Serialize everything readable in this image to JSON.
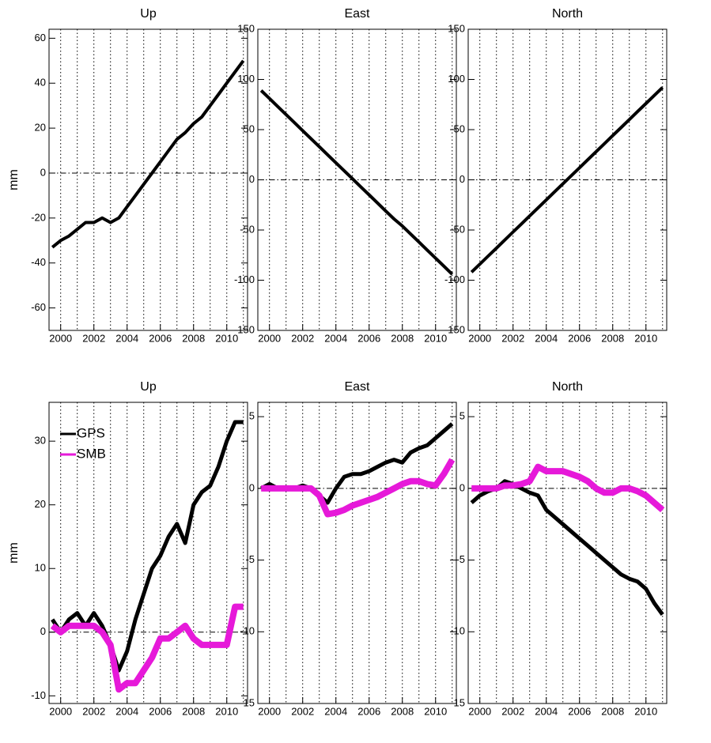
{
  "chart_data": [
    {
      "type": "line",
      "title": "Up",
      "ylabel": "mm",
      "x": [
        1999.5,
        2000,
        2000.5,
        2001,
        2001.5,
        2002,
        2002.5,
        2003,
        2003.5,
        2004,
        2004.5,
        2005,
        2005.5,
        2006,
        2006.5,
        2007,
        2007.5,
        2008,
        2008.5,
        2009,
        2009.5,
        2010,
        2010.5,
        2011
      ],
      "values": [
        -33,
        -30,
        -28,
        -25,
        -22,
        -22,
        -20,
        -22,
        -20,
        -15,
        -10,
        -5,
        0,
        5,
        10,
        15,
        18,
        22,
        25,
        30,
        35,
        40,
        45,
        50
      ],
      "color": "#000000",
      "xlim": [
        1999.3,
        2011.25
      ],
      "xticks": [
        2000,
        2002,
        2004,
        2006,
        2008,
        2010
      ],
      "xgrid": [
        2000,
        2001,
        2002,
        2003,
        2004,
        2005,
        2006,
        2007,
        2008,
        2009,
        2010,
        2011
      ],
      "ylim": [
        -70,
        64
      ],
      "yticks": [
        -60,
        -40,
        -20,
        0,
        20,
        40,
        60
      ],
      "reference_line": 0
    },
    {
      "type": "line",
      "title": "East",
      "x": [
        1999.5,
        2000,
        2000.5,
        2001,
        2001.5,
        2002,
        2002.5,
        2003,
        2003.5,
        2004,
        2004.5,
        2005,
        2005.5,
        2006,
        2006.5,
        2007,
        2007.5,
        2008,
        2008.5,
        2009,
        2009.5,
        2010,
        2010.5,
        2011
      ],
      "values": [
        89,
        81,
        73,
        65,
        57,
        49,
        41,
        33,
        25,
        17,
        9,
        1,
        -7,
        -15,
        -23,
        -31,
        -39,
        -46,
        -54,
        -62,
        -70,
        -78,
        -86,
        -94
      ],
      "color": "#000000",
      "xlim": [
        1999.3,
        2011.25
      ],
      "xticks": [
        2000,
        2002,
        2004,
        2006,
        2008,
        2010
      ],
      "xgrid": [
        2000,
        2001,
        2002,
        2003,
        2004,
        2005,
        2006,
        2007,
        2008,
        2009,
        2010,
        2011
      ],
      "ylim": [
        -150,
        150
      ],
      "yticks": [
        -150,
        -100,
        -50,
        0,
        50,
        100,
        150
      ],
      "reference_line": 0
    },
    {
      "type": "line",
      "title": "North",
      "x": [
        1999.5,
        2000,
        2000.5,
        2001,
        2001.5,
        2002,
        2002.5,
        2003,
        2003.5,
        2004,
        2004.5,
        2005,
        2005.5,
        2006,
        2006.5,
        2007,
        2007.5,
        2008,
        2008.5,
        2009,
        2009.5,
        2010,
        2010.5,
        2011
      ],
      "values": [
        -92,
        -84,
        -76,
        -68,
        -60,
        -52,
        -44,
        -36,
        -28,
        -20,
        -12,
        -4,
        4,
        12,
        20,
        28,
        36,
        44,
        52,
        60,
        68,
        76,
        84,
        92
      ],
      "color": "#000000",
      "xlim": [
        1999.3,
        2011.25
      ],
      "xticks": [
        2000,
        2002,
        2004,
        2006,
        2008,
        2010
      ],
      "xgrid": [
        2000,
        2001,
        2002,
        2003,
        2004,
        2005,
        2006,
        2007,
        2008,
        2009,
        2010,
        2011
      ],
      "ylim": [
        -150,
        150
      ],
      "yticks": [
        -150,
        -100,
        -50,
        0,
        50,
        100,
        150
      ],
      "reference_line": 0
    },
    {
      "type": "line",
      "title": "Up",
      "ylabel": "mm",
      "legend": "upper left",
      "x": [
        1999.5,
        2000,
        2000.5,
        2001,
        2001.5,
        2002,
        2002.5,
        2003,
        2003.5,
        2004,
        2004.5,
        2005,
        2005.5,
        2006,
        2006.5,
        2007,
        2007.5,
        2008,
        2008.5,
        2009,
        2009.5,
        2010,
        2010.5,
        2011
      ],
      "series": [
        {
          "name": "GPS",
          "color": "#000000",
          "values": [
            2,
            0,
            2,
            3,
            1,
            3,
            1,
            -2,
            -6,
            -3,
            2,
            6,
            10,
            12,
            15,
            17,
            14,
            20,
            22,
            23,
            26,
            30,
            33,
            33
          ]
        },
        {
          "name": "SMB",
          "color": "#e619d9",
          "values": [
            1,
            0,
            1,
            1,
            1,
            1,
            0,
            -2,
            -9,
            -8,
            -8,
            -6,
            -4,
            -1,
            -1,
            0,
            1,
            -1,
            -2,
            -2,
            -2,
            -2,
            4,
            4
          ]
        }
      ],
      "xlim": [
        1999.3,
        2011.25
      ],
      "xticks": [
        2000,
        2002,
        2004,
        2006,
        2008,
        2010
      ],
      "xgrid": [
        2000,
        2001,
        2002,
        2003,
        2004,
        2005,
        2006,
        2007,
        2008,
        2009,
        2010,
        2011
      ],
      "ylim": [
        -11.2,
        36.1
      ],
      "yticks": [
        -10,
        0,
        10,
        20,
        30
      ],
      "reference_line": 0
    },
    {
      "type": "line",
      "title": "East",
      "x": [
        1999.5,
        2000,
        2000.5,
        2001,
        2001.5,
        2002,
        2002.5,
        2003,
        2003.5,
        2004,
        2004.5,
        2005,
        2005.5,
        2006,
        2006.5,
        2007,
        2007.5,
        2008,
        2008.5,
        2009,
        2009.5,
        2010,
        2010.5,
        2011
      ],
      "series": [
        {
          "name": "GPS",
          "color": "#000000",
          "values": [
            0,
            0.3,
            0,
            0,
            0,
            0.2,
            0,
            -0.5,
            -1,
            0,
            0.8,
            1,
            1,
            1.2,
            1.5,
            1.8,
            2,
            1.8,
            2.5,
            2.8,
            3,
            3.5,
            4,
            4.5
          ]
        },
        {
          "name": "SMB",
          "color": "#e619d9",
          "values": [
            0,
            0,
            0,
            0,
            0,
            0,
            0,
            -0.5,
            -1.8,
            -1.7,
            -1.5,
            -1.2,
            -1,
            -0.8,
            -0.6,
            -0.3,
            0,
            0.3,
            0.5,
            0.5,
            0.3,
            0.2,
            1,
            2
          ]
        }
      ],
      "xlim": [
        1999.3,
        2011.25
      ],
      "xticks": [
        2000,
        2002,
        2004,
        2006,
        2008,
        2010
      ],
      "xgrid": [
        2000,
        2001,
        2002,
        2003,
        2004,
        2005,
        2006,
        2007,
        2008,
        2009,
        2010,
        2011
      ],
      "ylim": [
        -15,
        6
      ],
      "yticks": [
        -15,
        -10,
        -5,
        0,
        5
      ],
      "reference_line": 0
    },
    {
      "type": "line",
      "title": "North",
      "x": [
        1999.5,
        2000,
        2000.5,
        2001,
        2001.5,
        2002,
        2002.5,
        2003,
        2003.5,
        2004,
        2004.5,
        2005,
        2005.5,
        2006,
        2006.5,
        2007,
        2007.5,
        2008,
        2008.5,
        2009,
        2009.5,
        2010,
        2010.5,
        2011
      ],
      "series": [
        {
          "name": "GPS",
          "color": "#000000",
          "values": [
            -1,
            -0.5,
            -0.2,
            0,
            0.5,
            0.3,
            0,
            -0.3,
            -0.5,
            -1.5,
            -2,
            -2.5,
            -3,
            -3.5,
            -4,
            -4.5,
            -5,
            -5.5,
            -6,
            -6.3,
            -6.5,
            -7,
            -8,
            -8.8
          ]
        },
        {
          "name": "SMB",
          "color": "#e619d9",
          "values": [
            0,
            0,
            0,
            0,
            0.2,
            0.2,
            0.3,
            0.5,
            1.5,
            1.2,
            1.2,
            1.2,
            1,
            0.8,
            0.5,
            0,
            -0.3,
            -0.3,
            0,
            0,
            -0.2,
            -0.5,
            -1,
            -1.5
          ]
        }
      ],
      "xlim": [
        1999.3,
        2011.25
      ],
      "xticks": [
        2000,
        2002,
        2004,
        2006,
        2008,
        2010
      ],
      "xgrid": [
        2000,
        2001,
        2002,
        2003,
        2004,
        2005,
        2006,
        2007,
        2008,
        2009,
        2010,
        2011
      ],
      "ylim": [
        -15,
        6
      ],
      "yticks": [
        -15,
        -10,
        -5,
        0,
        5
      ],
      "reference_line": 0
    }
  ]
}
